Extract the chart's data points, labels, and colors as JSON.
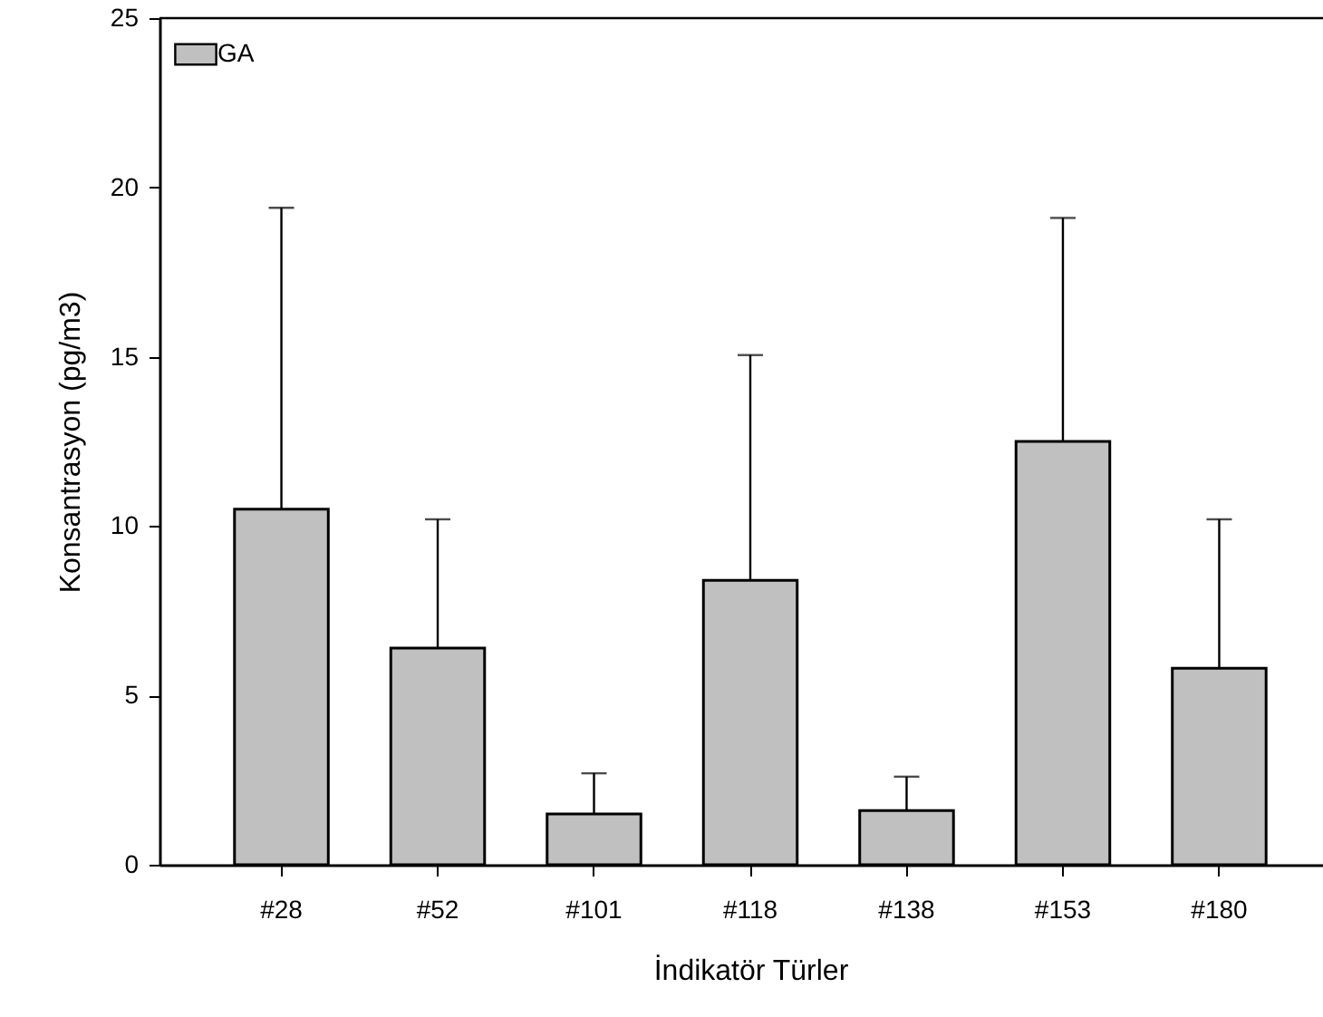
{
  "chart_data": {
    "type": "bar",
    "xlabel": "İndikatör Türler",
    "ylabel": "Konsantrasyon (pg/m3)",
    "categories": [
      "#28",
      "#52",
      "#101",
      "#118",
      "#138",
      "#153",
      "#180"
    ],
    "series": [
      {
        "name": "GA",
        "color": "#c0c0c0",
        "values": [
          10.5,
          6.4,
          1.5,
          8.4,
          1.6,
          12.5,
          5.8
        ],
        "errors": [
          [
            10.5,
            19.4
          ],
          [
            6.4,
            10.2
          ],
          [
            1.5,
            2.7
          ],
          [
            8.4,
            15.05
          ],
          [
            1.6,
            2.6
          ],
          [
            12.5,
            19.1
          ],
          [
            5.8,
            10.2
          ]
        ]
      }
    ],
    "ylim": [
      0,
      25
    ],
    "yticks": [
      0,
      5,
      10,
      15,
      20,
      25
    ],
    "grid": false,
    "legend": "top left"
  }
}
